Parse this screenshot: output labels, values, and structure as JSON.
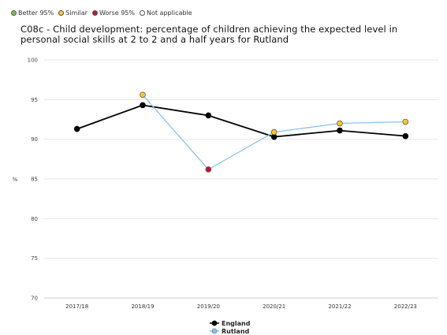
{
  "legend_top": [
    {
      "label": "Better 95%",
      "color": "#7dc34c"
    },
    {
      "label": "Similar",
      "color": "#ffc72c"
    },
    {
      "label": "Worse 95%",
      "color": "#c8102e"
    },
    {
      "label": "Not applicable",
      "color": "#ffffff"
    }
  ],
  "chart_data": {
    "type": "line",
    "title": "C08c - Child development: percentage of children achieving the expected level in personal social skills at 2 to 2 and a half years for Rutland",
    "xlabel": "",
    "ylabel": "%",
    "ylim": [
      70,
      100
    ],
    "yticks": [
      70,
      75,
      80,
      85,
      90,
      95,
      100
    ],
    "grid": true,
    "legend_position": "bottom",
    "categories": [
      "2017/18",
      "2018/19",
      "2019/20",
      "2020/21",
      "2021/22",
      "2022/23"
    ],
    "series": [
      {
        "name": "England",
        "color": "#000000",
        "values": [
          91.3,
          94.3,
          93.0,
          90.3,
          91.1,
          90.4
        ]
      },
      {
        "name": "Rutland",
        "color": "#8ec1ea",
        "values": [
          null,
          95.6,
          86.2,
          90.9,
          92.0,
          92.2
        ],
        "point_status": [
          null,
          "Similar",
          "Worse 95%",
          "Similar",
          "Similar",
          "Similar"
        ]
      }
    ]
  }
}
